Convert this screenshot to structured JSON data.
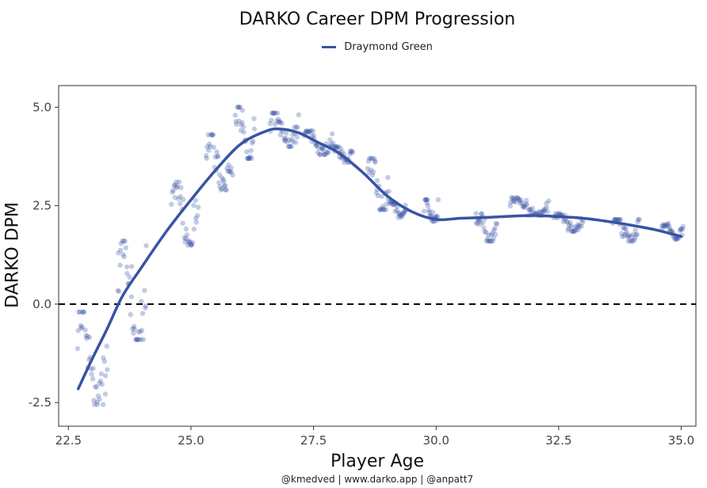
{
  "chart_data": {
    "type": "scatter",
    "title": "DARKO Career DPM Progression",
    "xlabel": "Player Age",
    "ylabel": "DARKO DPM",
    "xlim": [
      22.3,
      35.3
    ],
    "ylim": [
      -3.1,
      5.55
    ],
    "x_ticks": [
      22.5,
      25.0,
      27.5,
      30.0,
      32.5,
      35.0
    ],
    "x_tick_labels": [
      "22.5",
      "25.0",
      "27.5",
      "30.0",
      "32.5",
      "35.0"
    ],
    "y_ticks": [
      -2.5,
      0.0,
      2.5,
      5.0
    ],
    "y_tick_labels": [
      "-2.5",
      "0.0",
      "2.5",
      "5.0"
    ],
    "reference_line": {
      "y": 0,
      "style": "dashed",
      "color": "#000000"
    },
    "grid": false,
    "legend_position": "top-center",
    "series": [
      {
        "name": "Draymond Green",
        "color": "#3853a4",
        "trend": {
          "x": [
            22.7,
            23.0,
            23.3,
            23.6,
            24.0,
            24.5,
            25.0,
            25.5,
            26.0,
            26.5,
            26.8,
            27.2,
            27.6,
            28.0,
            28.5,
            29.0,
            29.5,
            30.0,
            30.5,
            31.0,
            31.5,
            32.0,
            32.5,
            33.0,
            33.5,
            34.0,
            34.5,
            35.0
          ],
          "y": [
            -2.15,
            -1.35,
            -0.6,
            0.2,
            0.95,
            1.85,
            2.65,
            3.4,
            4.05,
            4.38,
            4.45,
            4.35,
            4.1,
            3.85,
            3.35,
            2.75,
            2.35,
            2.15,
            2.18,
            2.2,
            2.23,
            2.25,
            2.22,
            2.18,
            2.1,
            2.0,
            1.88,
            1.72
          ]
        },
        "clusters": [
          {
            "x0": 22.68,
            "x1": 23.3,
            "y0": -2.55,
            "y1": -0.2
          },
          {
            "x0": 23.5,
            "x1": 24.1,
            "y0": -0.9,
            "y1": 1.6
          },
          {
            "x0": 24.6,
            "x1": 25.15,
            "y0": 1.5,
            "y1": 3.1
          },
          {
            "x0": 25.3,
            "x1": 25.85,
            "y0": 2.9,
            "y1": 4.3
          },
          {
            "x0": 25.9,
            "x1": 26.3,
            "y0": 3.7,
            "y1": 5.0
          },
          {
            "x0": 26.6,
            "x1": 27.2,
            "y0": 4.0,
            "y1": 4.85
          },
          {
            "x0": 27.3,
            "x1": 27.9,
            "y0": 3.8,
            "y1": 4.4
          },
          {
            "x0": 27.9,
            "x1": 28.3,
            "y0": 3.6,
            "y1": 4.0
          },
          {
            "x0": 28.6,
            "x1": 29.05,
            "y0": 2.4,
            "y1": 3.7
          },
          {
            "x0": 29.05,
            "x1": 29.4,
            "y0": 2.2,
            "y1": 2.6
          },
          {
            "x0": 29.75,
            "x1": 30.05,
            "y0": 2.1,
            "y1": 2.65
          },
          {
            "x0": 30.8,
            "x1": 31.25,
            "y0": 1.6,
            "y1": 2.3
          },
          {
            "x0": 31.5,
            "x1": 32.3,
            "y0": 2.25,
            "y1": 2.7
          },
          {
            "x0": 32.4,
            "x1": 33.0,
            "y0": 1.85,
            "y1": 2.3
          },
          {
            "x0": 33.6,
            "x1": 34.15,
            "y0": 1.6,
            "y1": 2.15
          },
          {
            "x0": 34.6,
            "x1": 35.05,
            "y0": 1.65,
            "y1": 2.05
          }
        ]
      }
    ],
    "caption": "@kmedved | www.darko.app | @anpatt7"
  }
}
